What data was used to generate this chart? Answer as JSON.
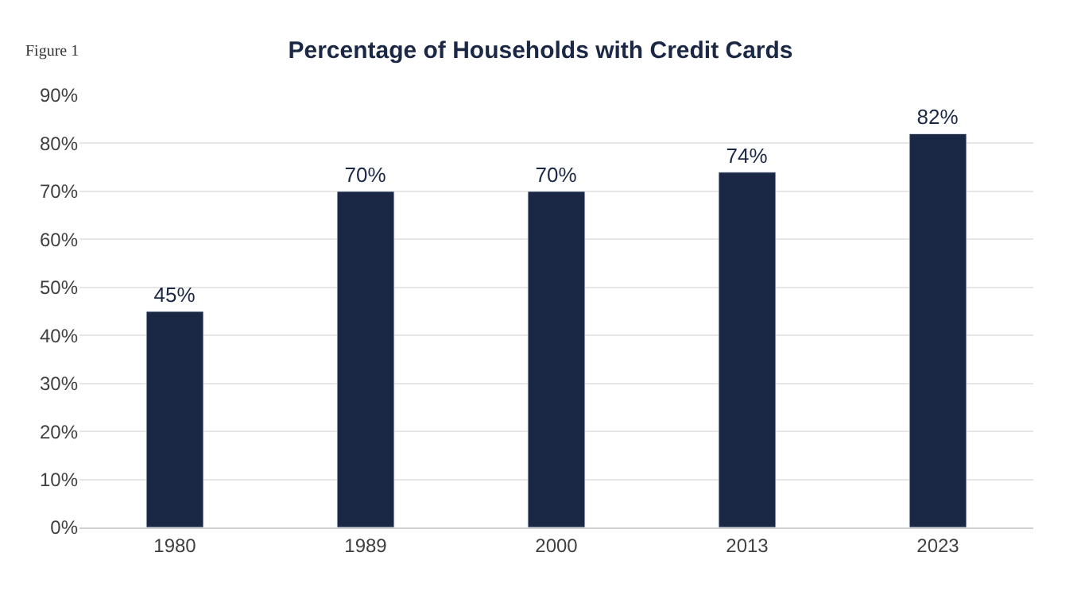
{
  "chart_data": {
    "type": "bar",
    "title": "Percentage of Households with Credit Cards",
    "annotations": [
      "Figure 1"
    ],
    "categories": [
      "1980",
      "1989",
      "2000",
      "2013",
      "2023"
    ],
    "values": [
      45,
      70,
      70,
      74,
      82
    ],
    "value_labels": [
      "45%",
      "70%",
      "70%",
      "74%",
      "82%"
    ],
    "color": "#1b2845",
    "ylim": [
      0,
      90
    ],
    "yticks": [
      {
        "value": 0,
        "label": "0%"
      },
      {
        "value": 10,
        "label": "10%"
      },
      {
        "value": 20,
        "label": "20%"
      },
      {
        "value": 30,
        "label": "30%"
      },
      {
        "value": 40,
        "label": "40%"
      },
      {
        "value": 50,
        "label": "50%"
      },
      {
        "value": 60,
        "label": "60%"
      },
      {
        "value": 70,
        "label": "70%"
      },
      {
        "value": 80,
        "label": "80%"
      },
      {
        "value": 90,
        "label": "90%"
      }
    ],
    "grid": "y",
    "legend": false
  }
}
